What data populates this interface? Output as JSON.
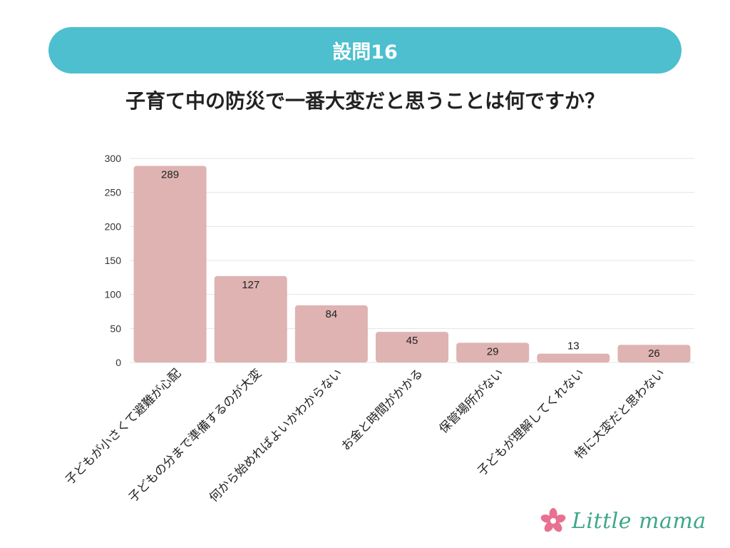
{
  "header": {
    "banner_label": "設問16",
    "question": "子育て中の防災で一番大変だと思うことは何ですか？"
  },
  "chart_data": {
    "type": "bar",
    "categories": [
      "子どもが小さくて避難が心配",
      "子どもの分まで準備するのが大変",
      "何から始めればよいかわからない",
      "お金と時間がかかる",
      "保管場所がない",
      "子どもが理解してくれない",
      "特に大変だと思わない"
    ],
    "values": [
      289,
      127,
      84,
      45,
      29,
      13,
      26
    ],
    "value_labels": [
      "289",
      "127",
      "84",
      "45",
      "29",
      "13",
      "26"
    ],
    "yticks": [
      "0",
      "50",
      "100",
      "150",
      "200",
      "250",
      "300"
    ],
    "ylim": [
      0,
      300
    ],
    "grid": true,
    "bar_color": "#deb3b2",
    "title": "",
    "xlabel": "",
    "ylabel": ""
  },
  "logo": {
    "text": "Little mama",
    "icon": "flower-icon",
    "brand_color": "#3ea78a",
    "flower_color": "#e8718f"
  },
  "colors": {
    "banner": "#4dbfcf",
    "grid": "#e3e3e3"
  }
}
